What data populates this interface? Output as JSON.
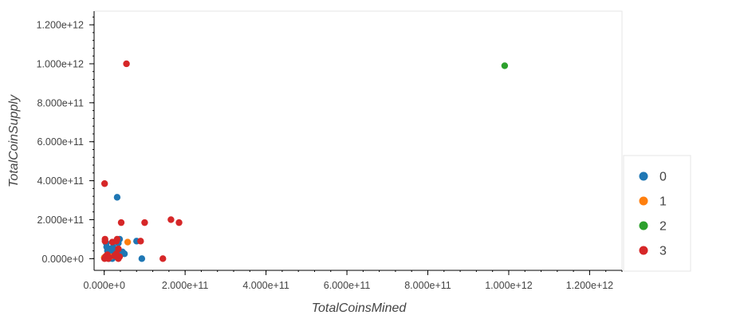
{
  "chart_data": {
    "type": "scatter",
    "xlabel": "TotalCoinsMined",
    "ylabel": "TotalCoinSupply",
    "xlim": [
      -25000000000.0,
      1280000000000.0
    ],
    "ylim": [
      -60000000000.0,
      1270000000000.0
    ],
    "x_ticks": [
      0,
      200000000000.0,
      400000000000.0,
      600000000000.0,
      800000000000.0,
      1000000000000.0,
      1200000000000.0
    ],
    "x_tick_labels": [
      "0.000e+0",
      "2.000e+11",
      "4.000e+11",
      "6.000e+11",
      "8.000e+11",
      "1.000e+12",
      "1.200e+12"
    ],
    "y_ticks": [
      0,
      200000000000.0,
      400000000000.0,
      600000000000.0,
      800000000000.0,
      1000000000000.0,
      1200000000000.0
    ],
    "y_tick_labels": [
      "0.000e+0",
      "2.000e+11",
      "4.000e+11",
      "6.000e+11",
      "8.000e+11",
      "1.000e+12",
      "1.200e+12"
    ],
    "grid": false,
    "legend_position": "right",
    "series": [
      {
        "name": "0",
        "color": "#1f77b4",
        "points": [
          [
            5000000000.0,
            80000000000.0
          ],
          [
            6000000000.0,
            60000000000.0
          ],
          [
            8000000000.0,
            40000000000.0
          ],
          [
            10000000000.0,
            20000000000.0
          ],
          [
            12000000000.0,
            0
          ],
          [
            15000000000.0,
            50000000000.0
          ],
          [
            18000000000.0,
            30000000000.0
          ],
          [
            20000000000.0,
            0
          ],
          [
            25000000000.0,
            20000000000.0
          ],
          [
            30000000000.0,
            40000000000.0
          ],
          [
            32000000000.0,
            315000000000.0
          ],
          [
            35000000000.0,
            80000000000.0
          ],
          [
            38000000000.0,
            100000000000.0
          ],
          [
            40000000000.0,
            20000000000.0
          ],
          [
            45000000000.0,
            35000000000.0
          ],
          [
            50000000000.0,
            25000000000.0
          ],
          [
            80000000000.0,
            90000000000.0
          ],
          [
            93000000000.0,
            0
          ],
          [
            22000000000.0,
            60000000000.0
          ],
          [
            28000000000.0,
            10000000000.0
          ]
        ]
      },
      {
        "name": "1",
        "color": "#ff7f0e",
        "points": [
          [
            0,
            5000000000.0
          ],
          [
            5000000000.0,
            15000000000.0
          ],
          [
            15000000000.0,
            10000000000.0
          ],
          [
            58000000000.0,
            85000000000.0
          ]
        ]
      },
      {
        "name": "2",
        "color": "#2ca02c",
        "points": [
          [
            990000000000.0,
            990000000000.0
          ]
        ]
      },
      {
        "name": "3",
        "color": "#d62728",
        "points": [
          [
            55000000000.0,
            1000000000000.0
          ],
          [
            1000000000.0,
            385000000000.0
          ],
          [
            2000000000.0,
            100000000000.0
          ],
          [
            2000000000.0,
            90000000000.0
          ],
          [
            1000000000.0,
            0
          ],
          [
            3000000000.0,
            10000000000.0
          ],
          [
            8000000000.0,
            20000000000.0
          ],
          [
            10000000000.0,
            0
          ],
          [
            12000000000.0,
            5000000000.0
          ],
          [
            20000000000.0,
            85000000000.0
          ],
          [
            30000000000.0,
            90000000000.0
          ],
          [
            35000000000.0,
            50000000000.0
          ],
          [
            35000000000.0,
            0
          ],
          [
            38000000000.0,
            10000000000.0
          ],
          [
            42000000000.0,
            185000000000.0
          ],
          [
            90000000000.0,
            90000000000.0
          ],
          [
            100000000000.0,
            185000000000.0
          ],
          [
            145000000000.0,
            0
          ],
          [
            165000000000.0,
            200000000000.0
          ],
          [
            185000000000.0,
            185000000000.0
          ],
          [
            25000000000.0,
            15000000000.0
          ],
          [
            30000000000.0,
            25000000000.0
          ],
          [
            32000000000.0,
            100000000000.0
          ]
        ]
      }
    ]
  }
}
